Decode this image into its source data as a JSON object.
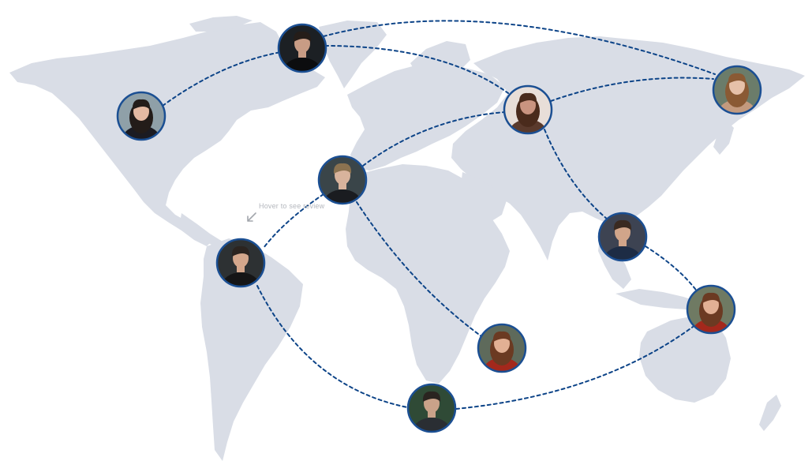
{
  "hint_text": "Hover to see review",
  "colors": {
    "map_land": "#d9dde6",
    "route": "#0d4488",
    "avatar_ring": "#1b4f93",
    "hint_text": "#b4b7bd"
  },
  "avatars": [
    {
      "id": "northeast-usa",
      "icon": "man-portrait",
      "bg": "#1c2024",
      "skin": "#c89c85",
      "hair": "#251d19",
      "shirt": "#0c0d0f"
    },
    {
      "id": "north-america",
      "icon": "woman-portrait",
      "bg": "#8fa0a8",
      "skin": "#e4b9a2",
      "hair": "#231c19",
      "shirt": "#1b1b22"
    },
    {
      "id": "russia",
      "icon": "woman-portrait",
      "bg": "#e8ded8",
      "skin": "#c99480",
      "hair": "#4a2b1c",
      "shirt": "#5a3a2c"
    },
    {
      "id": "far-east",
      "icon": "woman-portrait",
      "bg": "#6b7c6a",
      "skin": "#e6c1a9",
      "hair": "#8a5a34",
      "shirt": "#c39a7e"
    },
    {
      "id": "spain",
      "icon": "man-portrait",
      "bg": "#3a4549",
      "skin": "#d8b39c",
      "hair": "#8b7250",
      "shirt": "#1a1c20"
    },
    {
      "id": "india",
      "icon": "man-portrait",
      "bg": "#3d4352",
      "skin": "#d1a58a",
      "hair": "#3a2a21",
      "shirt": "#1d2c45"
    },
    {
      "id": "colombia",
      "icon": "man-portrait",
      "bg": "#2d3133",
      "skin": "#d4a78c",
      "hair": "#2b2420",
      "shirt": "#151516"
    },
    {
      "id": "africa",
      "icon": "woman-portrait",
      "bg": "#5e6a5b",
      "skin": "#e2b094",
      "hair": "#6b3a22",
      "shirt": "#a3281c"
    },
    {
      "id": "australia",
      "icon": "woman-portrait",
      "bg": "#6f7a63",
      "skin": "#e2b094",
      "hair": "#6b3a22",
      "shirt": "#a3281c"
    },
    {
      "id": "south-atlantic",
      "icon": "man-portrait",
      "bg": "#2f4a36",
      "skin": "#c9a289",
      "hair": "#2a2420",
      "shirt": "#2a2e33"
    }
  ]
}
